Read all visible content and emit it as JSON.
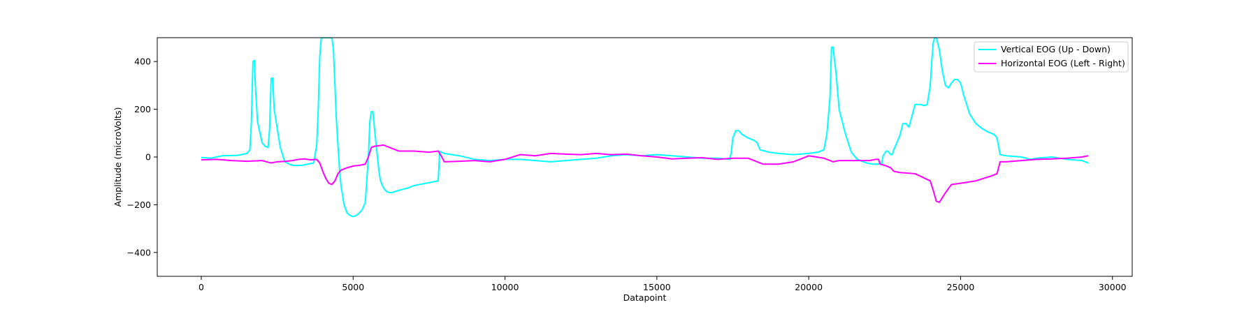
{
  "chart_data": {
    "type": "line",
    "xlabel": "Datapoint",
    "ylabel": "Amplitude (microVolts)",
    "xlim": [
      -1450,
      30650
    ],
    "ylim": [
      -500,
      500
    ],
    "xticks": [
      0,
      5000,
      10000,
      15000,
      20000,
      25000,
      30000
    ],
    "yticks": [
      -400,
      -200,
      0,
      200,
      400
    ],
    "legend_position": "top-right",
    "series": [
      {
        "name": "Vertical EOG (Up - Down)",
        "color": "#00FFFF",
        "x": [
          0,
          300,
          500,
          700,
          1200,
          1500,
          1600,
          1650,
          1700,
          1750,
          1780,
          1850,
          2000,
          2100,
          2200,
          2250,
          2300,
          2350,
          2400,
          2600,
          2750,
          2900,
          3000,
          3300,
          3500,
          3700,
          3800,
          3850,
          3900,
          3950,
          4000,
          4100,
          4200,
          4300,
          4350,
          4400,
          4450,
          4500,
          4550,
          4600,
          4700,
          4800,
          4900,
          5000,
          5100,
          5200,
          5300,
          5400,
          5500,
          5550,
          5600,
          5630,
          5650,
          5700,
          5800,
          5850,
          5900,
          6000,
          6100,
          6200,
          6300,
          6500,
          6800,
          7000,
          7200,
          7400,
          7600,
          7800,
          7850,
          7900,
          8000,
          8500,
          9000,
          9500,
          10000,
          10500,
          11000,
          11500,
          12000,
          12500,
          13000,
          13500,
          14000,
          14500,
          15000,
          15500,
          16000,
          16500,
          17000,
          17400,
          17450,
          17500,
          17600,
          17700,
          17800,
          18000,
          18200,
          18300,
          18400,
          18700,
          19000,
          19500,
          20000,
          20300,
          20500,
          20600,
          20700,
          20750,
          20800,
          20900,
          21000,
          21200,
          21400,
          21600,
          21900,
          22100,
          22300,
          22350,
          22400,
          22450,
          22550,
          22600,
          22700,
          22750,
          22800,
          23000,
          23100,
          23200,
          23300,
          23500,
          23700,
          23800,
          23900,
          24000,
          24050,
          24100,
          24150,
          24200,
          24300,
          24400,
          24500,
          24600,
          24700,
          24800,
          24900,
          25000,
          25100,
          25300,
          25500,
          25700,
          25900,
          26000,
          26100,
          26200,
          26300,
          26500,
          27000,
          27300,
          27500,
          28000,
          28500,
          29000,
          29200
        ],
        "y": [
          -2,
          -5,
          0,
          5,
          7,
          15,
          30,
          150,
          400,
          405,
          300,
          150,
          60,
          45,
          40,
          120,
          330,
          330,
          200,
          40,
          -20,
          -30,
          -35,
          -35,
          -30,
          -25,
          50,
          200,
          420,
          500,
          500,
          500,
          500,
          500,
          450,
          300,
          150,
          50,
          -50,
          -120,
          -200,
          -235,
          -245,
          -250,
          -245,
          -235,
          -220,
          -190,
          0,
          150,
          190,
          190,
          190,
          120,
          0,
          -60,
          -100,
          -130,
          -145,
          -150,
          -148,
          -140,
          -130,
          -120,
          -115,
          -110,
          -105,
          -100,
          25,
          20,
          15,
          5,
          -10,
          -15,
          -10,
          -10,
          -15,
          -20,
          -15,
          -10,
          -5,
          5,
          10,
          5,
          10,
          5,
          0,
          -5,
          -5,
          -10,
          20,
          80,
          110,
          110,
          95,
          80,
          70,
          60,
          30,
          20,
          15,
          10,
          15,
          20,
          30,
          100,
          250,
          460,
          460,
          350,
          200,
          100,
          20,
          -10,
          -25,
          -30,
          -30,
          -25,
          -30,
          5,
          25,
          25,
          10,
          10,
          30,
          90,
          140,
          140,
          125,
          220,
          220,
          215,
          220,
          300,
          400,
          480,
          500,
          500,
          450,
          360,
          300,
          290,
          310,
          325,
          325,
          310,
          260,
          180,
          140,
          120,
          105,
          100,
          95,
          80,
          10,
          5,
          0,
          -10,
          -5,
          0,
          -10,
          -15,
          -25
        ]
      },
      {
        "name": "Horizontal EOG (Left - Right)",
        "color": "#FF00FF",
        "x": [
          0,
          500,
          1000,
          1500,
          2000,
          2300,
          2500,
          2800,
          3000,
          3200,
          3400,
          3600,
          3800,
          3900,
          4000,
          4100,
          4200,
          4300,
          4400,
          4500,
          4600,
          4800,
          5000,
          5200,
          5400,
          5500,
          5600,
          5700,
          6000,
          6200,
          6500,
          7000,
          7500,
          7800,
          7900,
          8000,
          8500,
          9000,
          9500,
          10000,
          10500,
          11000,
          11500,
          12000,
          12500,
          13000,
          13500,
          14000,
          14500,
          15000,
          15500,
          16000,
          16500,
          17000,
          17500,
          18000,
          18300,
          18500,
          19000,
          19500,
          20000,
          20500,
          20800,
          21000,
          21500,
          22000,
          22200,
          22300,
          22350,
          22500,
          22700,
          22800,
          23000,
          23500,
          24000,
          24100,
          24200,
          24300,
          24500,
          24700,
          25000,
          25500,
          26000,
          26200,
          26300,
          26500,
          27000,
          27500,
          28000,
          28500,
          29000,
          29200
        ],
        "y": [
          -12,
          -10,
          -15,
          -18,
          -15,
          -25,
          -20,
          -18,
          -15,
          -10,
          -8,
          -12,
          -10,
          -25,
          -60,
          -90,
          -110,
          -115,
          -100,
          -70,
          -55,
          -45,
          -38,
          -35,
          -30,
          0,
          40,
          45,
          50,
          40,
          25,
          25,
          20,
          25,
          5,
          -20,
          -18,
          -15,
          -20,
          -10,
          10,
          5,
          15,
          12,
          10,
          15,
          10,
          12,
          5,
          0,
          -8,
          -5,
          -3,
          -10,
          -5,
          -5,
          -20,
          -30,
          -30,
          -20,
          5,
          -5,
          -20,
          -15,
          -15,
          -15,
          -10,
          -10,
          -30,
          -35,
          -45,
          -60,
          -65,
          -70,
          -100,
          -140,
          -185,
          -190,
          -150,
          -115,
          -110,
          -100,
          -80,
          -70,
          -20,
          -20,
          -15,
          -10,
          -8,
          -5,
          0,
          5
        ]
      }
    ]
  }
}
